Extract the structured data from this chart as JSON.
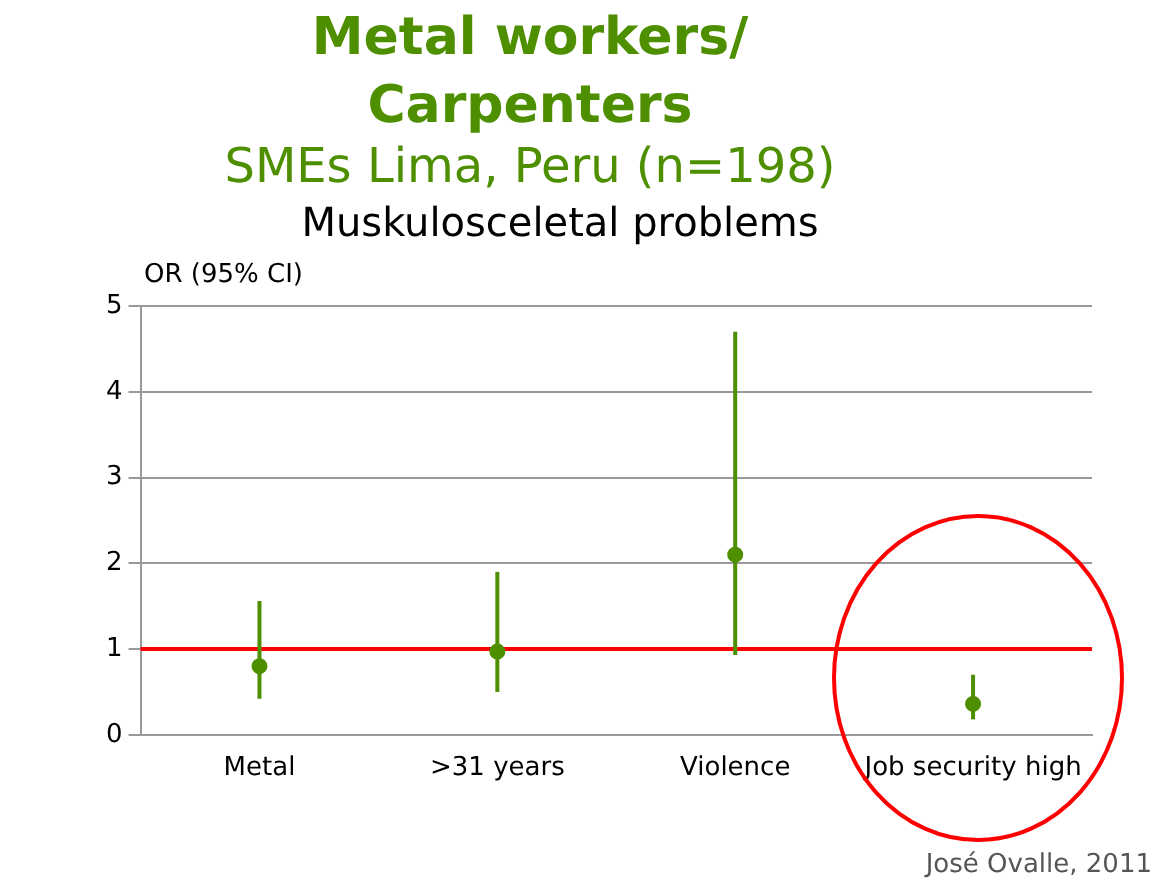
{
  "chart_data": {
    "type": "scatter",
    "title": "Metal workers/ Carpenters",
    "subtitle": "SMEs Lima, Peru (n=198)",
    "ylabel": "OR (95% CI)",
    "annotations": [
      "Muskulosceletal problems",
      "José Ovalle, 2011"
    ],
    "categories": [
      "Metal",
      ">31 years",
      "Violence",
      "Job security high"
    ],
    "series": [
      {
        "color": "#4e8f00",
        "values": [
          0.8,
          0.97,
          2.1,
          0.36
        ],
        "errors": [
          [
            0.42,
            1.56
          ],
          [
            0.5,
            1.9
          ],
          [
            0.93,
            4.7
          ],
          [
            0.18,
            0.7
          ]
        ]
      }
    ],
    "ylim": [
      0,
      5
    ],
    "yticks": [
      0,
      1,
      2,
      3,
      4,
      5
    ],
    "grid": "y",
    "legend": false,
    "marker": "circle",
    "ref_lines": [
      {
        "axis": "y",
        "value": 1,
        "color": "#ff0000"
      }
    ]
  }
}
